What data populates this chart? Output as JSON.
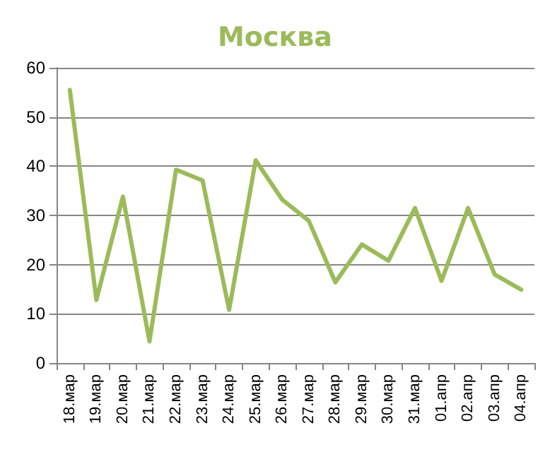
{
  "chart_data": {
    "type": "line",
    "title": "Москва",
    "categories": [
      "18.мар",
      "19.мар",
      "20.мар",
      "21.мар",
      "22.мар",
      "23.мар",
      "24.мар",
      "25.мар",
      "26.мар",
      "27.мар",
      "28.мар",
      "29.мар",
      "30.мар",
      "31.мар",
      "01.апр",
      "02.апр",
      "03.апр",
      "04.апр"
    ],
    "series": [
      {
        "color": "#9bbb59",
        "values": [
          55.5,
          12.8,
          33.8,
          4.4,
          39.3,
          37.1,
          10.8,
          41.2,
          33.2,
          28.9,
          16.4,
          24.1,
          20.8,
          31.5,
          16.7,
          31.5,
          18.0,
          14.9
        ]
      }
    ],
    "ylim": [
      0,
      60
    ],
    "yticks": [
      0,
      10,
      20,
      30,
      40,
      50,
      60
    ],
    "grid": "y",
    "marker": "none",
    "line_style": "solid"
  }
}
